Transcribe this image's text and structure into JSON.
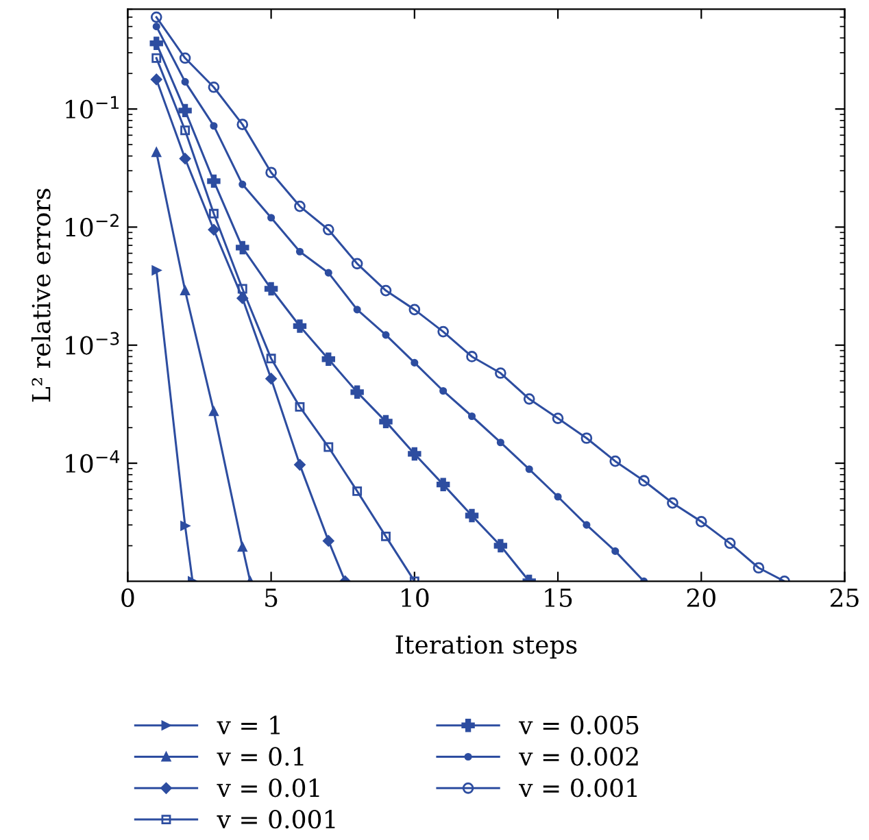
{
  "chart_data": {
    "type": "line",
    "xlabel": "Iteration steps",
    "ylabel": "L² relative errors",
    "log": "y",
    "xlim": [
      0,
      25
    ],
    "xticks": [
      0,
      5,
      10,
      15,
      20,
      25
    ],
    "ylim": [
      1e-05,
      0.7
    ],
    "yticks": [
      {
        "value": 0.1,
        "label": "10$^{−1}$"
      },
      {
        "value": 0.01,
        "label": "10$^{−2}$"
      },
      {
        "value": 0.001,
        "label": "10$^{−3}$"
      },
      {
        "value": 0.0001,
        "label": "10$^{−4}$"
      }
    ],
    "grid": false,
    "legend": "bottom",
    "line_style": "solid",
    "series": [
      {
        "name": "v = 1",
        "color": "#2d4da0",
        "marker": "triangle-right",
        "x": [
          1,
          2,
          2.26
        ],
        "values": [
          0.0043,
          2.95e-05,
          1e-05
        ]
      },
      {
        "name": "v = 0.1",
        "color": "#2d4da0",
        "marker": "triangle",
        "x": [
          1,
          2,
          3,
          4,
          4.27
        ],
        "values": [
          0.043,
          0.0029,
          0.000275,
          1.95e-05,
          1e-05
        ]
      },
      {
        "name": "v = 0.01",
        "color": "#2d4da0",
        "marker": "diamond",
        "x": [
          1,
          2,
          3,
          4,
          5,
          6,
          7,
          7.58
        ],
        "values": [
          0.178,
          0.038,
          0.0095,
          0.0025,
          0.00052,
          9.7e-05,
          2.2e-05,
          1e-05
        ]
      },
      {
        "name": "v = 0.001",
        "color": "#2d4da0",
        "marker": "square",
        "x": [
          1,
          2,
          3,
          4,
          5,
          6,
          7,
          8,
          9,
          10
        ],
        "values": [
          0.27,
          0.066,
          0.013,
          0.003,
          0.00077,
          0.0003,
          0.000137,
          5.8e-05,
          2.4e-05,
          1e-05
        ]
      },
      {
        "name": "v = 0.005",
        "color": "#2d4da0",
        "marker": "cross",
        "x": [
          1,
          2,
          3,
          4,
          5,
          6,
          7,
          8,
          9,
          10,
          11,
          12,
          13,
          14
        ],
        "values": [
          0.36,
          0.097,
          0.0245,
          0.0067,
          0.003,
          0.00145,
          0.00076,
          0.0004,
          0.000225,
          0.00012,
          6.6e-05,
          3.6e-05,
          2e-05,
          1e-05
        ]
      },
      {
        "name": "v = 0.002",
        "color": "#2d4da0",
        "marker": "circle",
        "x": [
          1,
          2,
          3,
          4,
          5,
          6,
          7,
          8,
          9,
          10,
          11,
          12,
          13,
          14,
          15,
          16,
          17,
          18
        ],
        "values": [
          0.5,
          0.17,
          0.072,
          0.023,
          0.012,
          0.0062,
          0.0041,
          0.002,
          0.00122,
          0.00071,
          0.00041,
          0.00025,
          0.00015,
          8.9e-05,
          5.2e-05,
          3e-05,
          1.8e-05,
          1e-05
        ]
      },
      {
        "name": "v = 0.001",
        "color": "#2d4da0",
        "marker": "circle-open",
        "x": [
          1,
          2,
          3,
          4,
          5,
          6,
          7,
          8,
          9,
          10,
          11,
          12,
          13,
          14,
          15,
          16,
          17,
          18,
          19,
          20,
          21,
          22,
          22.9
        ],
        "values": [
          0.6,
          0.27,
          0.153,
          0.074,
          0.029,
          0.015,
          0.0095,
          0.0049,
          0.0029,
          0.002,
          0.0013,
          0.0008,
          0.00058,
          0.00035,
          0.00024,
          0.000163,
          0.000104,
          7.1e-05,
          4.6e-05,
          3.2e-05,
          2.1e-05,
          1.3e-05,
          1e-05
        ]
      }
    ]
  }
}
